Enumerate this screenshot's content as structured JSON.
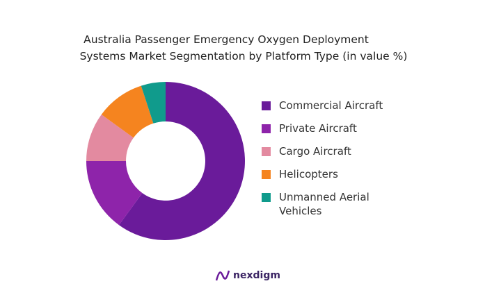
{
  "chart_data": {
    "type": "pie",
    "title": [
      "Australia Passenger Emergency Oxygen Deployment",
      "Systems Market Segmentation by Platform Type (in value %)"
    ],
    "categories": [
      "Commercial Aircraft",
      "Private Aircraft",
      "Cargo Aircraft",
      "Helicopters",
      "Unmanned Aerial Vehicles"
    ],
    "values": [
      60,
      15,
      10,
      10,
      5
    ],
    "colors": [
      "#6a1b9a",
      "#8e24aa",
      "#e38aa0",
      "#f5841f",
      "#109b8c"
    ],
    "donut": true
  },
  "brand": "nexdigm"
}
